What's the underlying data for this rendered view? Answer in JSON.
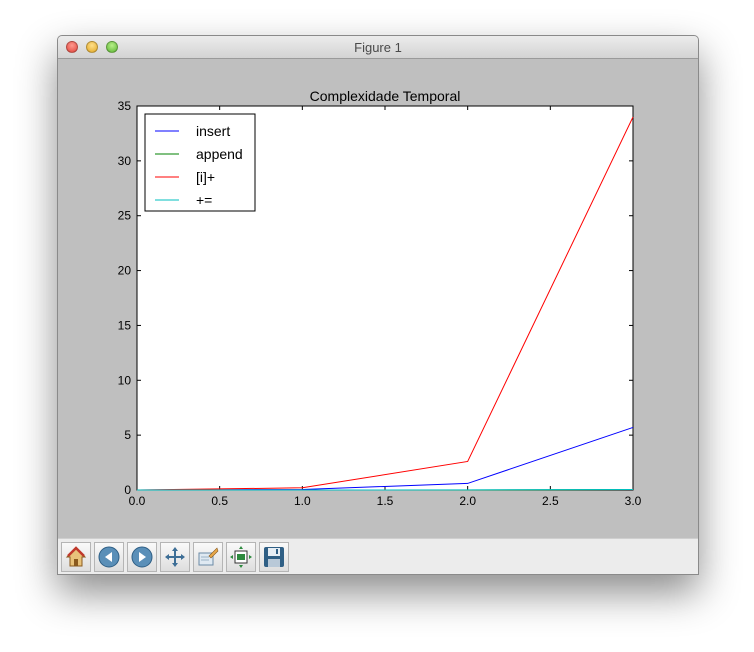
{
  "window": {
    "title": "Figure 1"
  },
  "toolbar": {
    "buttons": [
      {
        "icon": "home-icon"
      },
      {
        "icon": "back-arrow-icon"
      },
      {
        "icon": "forward-arrow-icon"
      },
      {
        "icon": "pan-icon"
      },
      {
        "icon": "zoom-rect-icon"
      },
      {
        "icon": "subplots-icon"
      },
      {
        "icon": "save-icon"
      }
    ]
  },
  "chart_data": {
    "type": "line",
    "title": "Complexidade Temporal",
    "xlabel": "",
    "ylabel": "",
    "xlim": [
      0,
      3
    ],
    "ylim": [
      0,
      35
    ],
    "xticks": [
      "0.0",
      "0.5",
      "1.0",
      "1.5",
      "2.0",
      "2.5",
      "3.0"
    ],
    "yticks": [
      "0",
      "5",
      "10",
      "15",
      "20",
      "25",
      "30",
      "35"
    ],
    "x": [
      0,
      1,
      2,
      3
    ],
    "series": [
      {
        "name": "insert",
        "color": "#0000ff",
        "values": [
          0.0,
          0.05,
          0.6,
          5.7
        ]
      },
      {
        "name": "append",
        "color": "#008000",
        "values": [
          0.0,
          0.0,
          0.0,
          0.05
        ]
      },
      {
        "name": "[i]+",
        "color": "#ff0000",
        "values": [
          0.0,
          0.2,
          2.6,
          34.0
        ]
      },
      {
        "name": "+=",
        "color": "#00bfbf",
        "values": [
          0.0,
          0.0,
          0.01,
          0.04
        ]
      }
    ],
    "grid": false,
    "legend": "top-left"
  }
}
